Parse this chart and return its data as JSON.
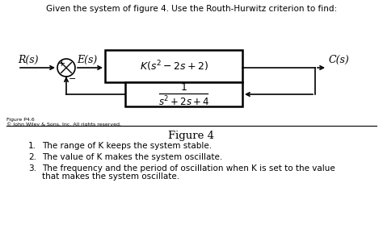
{
  "title_text": "Given the system of figure 4. Use the Routh-Hurwitz criterion to find:",
  "figure_label": "Figure 4",
  "figure_num_small": "Figure P4.6",
  "copyright_text": "© John Wiley & Sons, Inc. All rights reserved.",
  "Rs_label": "R(s)",
  "Es_label": "E(s)",
  "Cs_label": "C(s)",
  "plus_sign": "+",
  "minus_sign": "−",
  "items": [
    "The range of K keeps the system stable.",
    "The value of K makes the system oscillate.",
    "The frequency and the period of oscillation when K is set to the value",
    "that makes the system oscillate."
  ],
  "bg_color": "#ffffff",
  "text_color": "#000000",
  "box_edge_color": "#000000",
  "line_color": "#000000",
  "title_fontsize": 7.5,
  "label_fontsize": 9,
  "block_fontsize": 9,
  "list_fontsize": 7.5,
  "fig4_fontsize": 9.5,
  "small_fontsize": 4.5
}
